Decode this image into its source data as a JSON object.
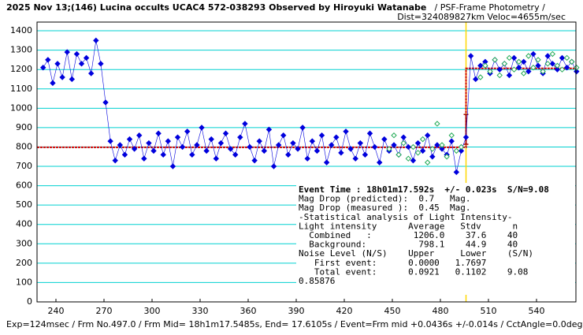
{
  "chart_data": {
    "type": "scatter",
    "title": "2025 Nov 13;(146) Lucina occults UCAC4 572-038293 Observed by Hiroyuki Watanabe",
    "subtitle": " / PSF-Frame Photometry /",
    "subtitle2": "Dist=324089827km Veloc=4655m/sec",
    "footer": "Exp=124msec / Frm No.497.0 / Frm Mid= 18h1m17.5485s, End= 17.6105s / Event=Frm mid +0.0436s +/-0.014s / CctAngle=0.0deg",
    "annotations": [
      "Event Time : 18h01m17.592s  +/- 0.023s  S/N=9.08",
      "Mag Drop (predicted):  0.7   Mag.",
      "Mag Drop (measured ):  0.45  Mag.",
      "-Statistical analysis of Light Intensity-",
      "Light intensity      Average   Stdv      n",
      "  Combined   :        1206.0    37.6    40",
      "  Background:          798.1    44.9    40",
      "Noise Level (N/S)    Upper     Lower    (S/N)",
      "   First event:      0.0000   1.7697",
      "   Total event:      0.0921   0.1102    9.08",
      "0.85876"
    ],
    "xlim": [
      228.2,
      564.6
    ],
    "ylim": [
      0,
      1445
    ],
    "xticks": [
      240,
      270,
      300,
      330,
      360,
      390,
      420,
      450,
      480,
      510,
      540
    ],
    "yticks": [
      0,
      100,
      200,
      300,
      400,
      500,
      600,
      700,
      800,
      900,
      1000,
      1100,
      1200,
      1300,
      1400
    ],
    "grid": true,
    "grid_color": "#00d0d0",
    "event_x": 496,
    "event_color": "#ffd800",
    "event_error": {
      "x": 496,
      "low": 814,
      "high": 968,
      "color": "#a00000"
    },
    "model": {
      "x": [
        228.2,
        496,
        496,
        564.6
      ],
      "values": [
        798.1,
        798.1,
        1206,
        1206
      ],
      "color": "#d00000"
    },
    "x": [
      232,
      235,
      238,
      241,
      244,
      247,
      250,
      253,
      256,
      259,
      262,
      265,
      268,
      271,
      274,
      277,
      280,
      283,
      286,
      289,
      292,
      295,
      298,
      301,
      304,
      307,
      310,
      313,
      316,
      319,
      322,
      325,
      328,
      331,
      334,
      337,
      340,
      343,
      346,
      349,
      352,
      355,
      358,
      361,
      364,
      367,
      370,
      373,
      376,
      379,
      382,
      385,
      388,
      391,
      394,
      397,
      400,
      403,
      406,
      409,
      412,
      415,
      418,
      421,
      424,
      427,
      430,
      433,
      436,
      439,
      442,
      445,
      448,
      451,
      454,
      457,
      460,
      463,
      466,
      469,
      472,
      475,
      478,
      481,
      484,
      487,
      490,
      493,
      496,
      499,
      502,
      505,
      508,
      511,
      514,
      517,
      520,
      523,
      526,
      529,
      532,
      535,
      538,
      541,
      544,
      547,
      550,
      553,
      556,
      559,
      562,
      565
    ],
    "series": [
      {
        "color": "#0000dd",
        "values": [
          1210,
          1250,
          1130,
          1230,
          1160,
          1290,
          1150,
          1280,
          1230,
          1260,
          1180,
          1350,
          1230,
          1030,
          830,
          730,
          810,
          760,
          840,
          790,
          860,
          740,
          820,
          780,
          870,
          760,
          830,
          700,
          850,
          800,
          880,
          760,
          810,
          900,
          780,
          840,
          740,
          820,
          870,
          790,
          760,
          850,
          920,
          800,
          730,
          830,
          780,
          890,
          700,
          810,
          860,
          760,
          820,
          790,
          900,
          740,
          830,
          780,
          860,
          720,
          810,
          850,
          770,
          880,
          790,
          740,
          820,
          760,
          870,
          800,
          720,
          840,
          780,
          810,
          760,
          850,
          800,
          730,
          820,
          780,
          860,
          750,
          810,
          790,
          760,
          830,
          670,
          780,
          850,
          1270,
          1150,
          1220,
          1240,
          1180,
          1250,
          1200,
          1230,
          1170,
          1260,
          1210,
          1240,
          1190,
          1280,
          1220,
          1180,
          1270,
          1230,
          1200,
          1260,
          1210,
          1240,
          1190
        ]
      },
      {
        "color": "#22aa55",
        "values": [
          null,
          null,
          null,
          null,
          null,
          null,
          null,
          null,
          null,
          null,
          null,
          null,
          null,
          null,
          null,
          null,
          null,
          null,
          null,
          null,
          null,
          null,
          null,
          null,
          null,
          null,
          null,
          null,
          null,
          null,
          null,
          null,
          null,
          null,
          null,
          null,
          null,
          null,
          null,
          null,
          null,
          null,
          null,
          null,
          null,
          null,
          null,
          null,
          null,
          null,
          null,
          null,
          null,
          null,
          null,
          null,
          null,
          null,
          null,
          null,
          null,
          null,
          null,
          null,
          null,
          null,
          null,
          null,
          null,
          null,
          null,
          null,
          790,
          860,
          760,
          820,
          740,
          800,
          770,
          840,
          720,
          790,
          920,
          810,
          750,
          860,
          780,
          800,
          null,
          null,
          null,
          1160,
          1220,
          1190,
          1250,
          1170,
          1230,
          1260,
          1200,
          1240,
          1180,
          1270,
          1210,
          1250,
          1190,
          1230,
          1280,
          1220,
          1200,
          1260,
          1240,
          1210
        ]
      }
    ]
  }
}
